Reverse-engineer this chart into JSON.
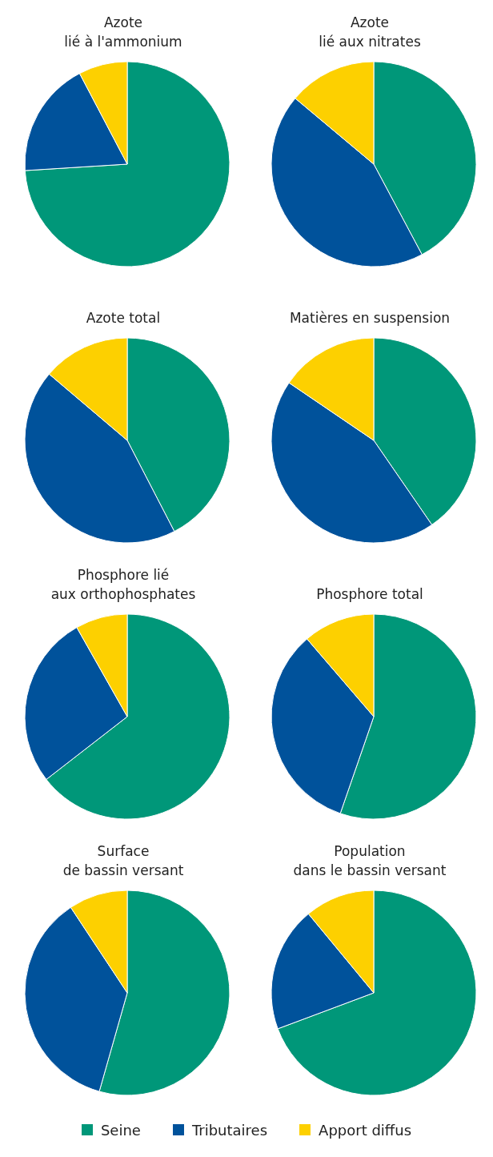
{
  "chart_data": [
    {
      "type": "pie",
      "title": "Azote\nlié à l'ammonium",
      "categories": [
        null,
        null,
        null
      ],
      "values": [
        74,
        18.3,
        7.7
      ],
      "colors": [
        "#009779",
        "#00529b",
        "#fdd000"
      ]
    },
    {
      "type": "pie",
      "title": "Azote\nlié aux nitrates",
      "categories": [
        null,
        null,
        null
      ],
      "values": [
        42.2,
        43.9,
        13.9
      ],
      "colors": [
        "#009779",
        "#00529b",
        "#fdd000"
      ]
    },
    {
      "type": "pie",
      "title": "Azote total",
      "categories": [
        null,
        null,
        null
      ],
      "values": [
        42.4,
        43.8,
        13.8
      ],
      "colors": [
        "#009779",
        "#00529b",
        "#fdd000"
      ]
    },
    {
      "type": "pie",
      "title": "Matières en suspension",
      "categories": [
        null,
        null,
        null
      ],
      "values": [
        40.4,
        44.1,
        15.5
      ],
      "colors": [
        "#009779",
        "#00529b",
        "#fdd000"
      ]
    },
    {
      "type": "pie",
      "title": "Phosphore lié\naux orthophosphates",
      "categories": [
        null,
        null,
        null
      ],
      "values": [
        64.5,
        27.3,
        8.2
      ],
      "colors": [
        "#009779",
        "#00529b",
        "#fdd000"
      ]
    },
    {
      "type": "pie",
      "title": "Phosphore total",
      "categories": [
        null,
        null,
        null
      ],
      "values": [
        55.3,
        33.4,
        11.3
      ],
      "colors": [
        "#009779",
        "#00529b",
        "#fdd000"
      ]
    },
    {
      "type": "pie",
      "title": "Surface\nde bassin versant",
      "categories": [
        null,
        null,
        null
      ],
      "values": [
        54.4,
        36.3,
        9.3
      ],
      "colors": [
        "#009779",
        "#00529b",
        "#fdd000"
      ]
    },
    {
      "type": "pie",
      "title": "Population\ndans le bassin versant",
      "categories": [
        "Seine",
        "Tributaires",
        "Apport diffus"
      ],
      "values": [
        69.3,
        19.7,
        11
      ],
      "colors": [
        "#009779",
        "#00529b",
        "#fdd000"
      ],
      "legend": "bottom"
    }
  ]
}
